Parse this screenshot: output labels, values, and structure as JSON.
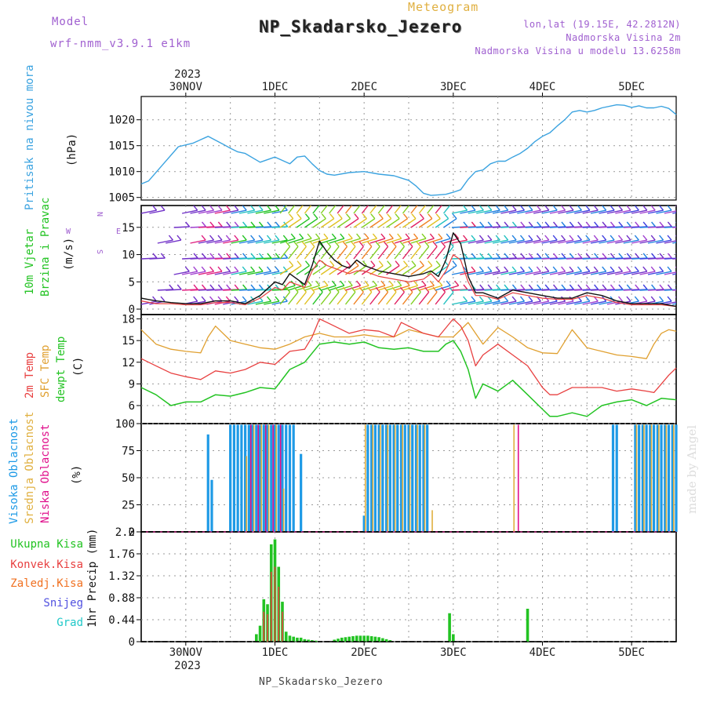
{
  "header": {
    "model_label": "Model",
    "model_name": "wrf-nmm_v3.9.1  e1km",
    "meteogram_label": "Meteogram",
    "station_title": "NP_Skadarsko_Jezero",
    "lonlat": "lon,lat (19.15E, 42.2812N)",
    "elevation": "Nadmorska Visina 2m",
    "model_elevation": "Nadmorska Visina u modelu 13.6258m",
    "bottom_name": "NP_Skadarsko_Jezero",
    "credit": "made by Angel"
  },
  "time_axis": {
    "year": "2023",
    "labels": [
      "30NOV",
      "1DEC",
      "2DEC",
      "3DEC",
      "4DEC",
      "5DEC"
    ],
    "label_hours": [
      0,
      24,
      48,
      72,
      96,
      120
    ],
    "range_hours": [
      -12,
      132
    ]
  },
  "panel_labels": {
    "pressure": [
      "Pritisak na nivou mora",
      "(hPa)"
    ],
    "wind": [
      "10m Vjetar",
      "Brzina i Pravac",
      "(m/s)"
    ],
    "temp": [
      "2m Temp",
      "SFC Temp",
      "dewpt Temp",
      "(C)"
    ],
    "cloud": [
      "Visoka Oblacnost",
      "Srednja Oblacnost",
      "Niska Oblacnost",
      "(%)"
    ],
    "precip": [
      "Ukupna Kisa",
      "Konvek.Kisa",
      "Zaledj.Kisa",
      "Snijeg",
      "Grad",
      "1hr Precip (mm)"
    ]
  },
  "compass": {
    "n": "N",
    "s": "S",
    "e": "E",
    "w": "W"
  },
  "colors": {
    "pressure": "#3ba3e0",
    "temp2m": "#e84040",
    "sfc": "#e0a030",
    "dew": "#22c322",
    "high_cloud": "#1e9ae6",
    "mid_cloud": "#e0b040",
    "low_cloud": "#e0108c",
    "total_precip": "#22c322",
    "conv_precip": "#e84040",
    "frz_precip": "#f07020",
    "snow": "#5050e0",
    "hail": "#20c8c8"
  },
  "chart_data": [
    {
      "type": "line",
      "title": "Pritisak na nivou mora",
      "ylabel": "(hPa)",
      "ylim": [
        1004.5,
        1024.5
      ],
      "yticks": [
        1005,
        1010,
        1015,
        1020
      ],
      "grid": true,
      "series": [
        {
          "name": "Pritisak na nivou mora",
          "x": [
            -12,
            -10,
            -6,
            -2,
            2,
            6,
            10,
            12,
            14,
            16,
            20,
            24,
            28,
            30,
            32,
            34,
            36,
            38,
            40,
            44,
            48,
            52,
            56,
            60,
            62,
            64,
            66,
            68,
            70,
            72,
            74,
            76,
            78,
            80,
            82,
            84,
            86,
            88,
            90,
            92,
            94,
            96,
            98,
            100,
            102,
            104,
            106,
            108,
            110,
            112,
            116,
            118,
            120,
            122,
            124,
            126,
            128,
            130,
            132
          ],
          "y": [
            1007.6,
            1008.2,
            1011.5,
            1014.8,
            1015.5,
            1016.8,
            1015.3,
            1014.5,
            1013.8,
            1013.5,
            1011.8,
            1012.8,
            1011.5,
            1012.8,
            1013.0,
            1011.5,
            1010.2,
            1009.5,
            1009.3,
            1009.8,
            1010.0,
            1009.5,
            1009.2,
            1008.3,
            1007.2,
            1005.8,
            1005.4,
            1005.5,
            1005.6,
            1006.0,
            1006.5,
            1008.5,
            1010.0,
            1010.3,
            1011.5,
            1012.0,
            1012.0,
            1012.8,
            1013.5,
            1014.5,
            1015.8,
            1016.8,
            1017.5,
            1018.8,
            1020.0,
            1021.5,
            1021.8,
            1021.5,
            1021.8,
            1022.3,
            1022.9,
            1022.8,
            1022.4,
            1022.7,
            1022.3,
            1022.3,
            1022.6,
            1022.2,
            1021.0
          ]
        }
      ]
    },
    {
      "type": "line",
      "title": "10m Vjetar Brzina i Pravac",
      "ylabel": "(m/s)",
      "ylim": [
        -1,
        19
      ],
      "yticks": [
        0,
        5,
        10,
        15
      ],
      "grid": true,
      "series": [
        {
          "name": "Brzina",
          "x": [
            -12,
            -8,
            -4,
            0,
            4,
            8,
            12,
            16,
            20,
            24,
            26,
            28,
            30,
            32,
            34,
            36,
            38,
            40,
            42,
            44,
            46,
            48,
            52,
            56,
            60,
            64,
            66,
            68,
            70,
            72,
            74,
            76,
            78,
            80,
            84,
            88,
            92,
            96,
            100,
            104,
            108,
            112,
            116,
            120,
            124,
            128,
            132
          ],
          "y": [
            2.0,
            1.5,
            1.2,
            1.0,
            1.0,
            1.5,
            1.5,
            1.0,
            2.5,
            5.0,
            4.5,
            6.5,
            5.5,
            4.5,
            8.0,
            12.5,
            10.5,
            9.0,
            8.0,
            7.5,
            9.0,
            8.0,
            7.0,
            6.5,
            6.0,
            6.5,
            7.0,
            6.0,
            9.0,
            14.0,
            12.0,
            6.0,
            3.0,
            3.0,
            2.0,
            3.5,
            3.0,
            2.5,
            2.0,
            2.0,
            3.0,
            2.5,
            1.5,
            1.0,
            1.0,
            1.0,
            0.5
          ]
        },
        {
          "name": "",
          "x": [
            -12,
            -8,
            -4,
            0,
            4,
            8,
            12,
            16,
            20,
            24,
            26,
            28,
            30,
            32,
            34,
            36,
            38,
            40,
            42,
            44,
            46,
            48,
            52,
            56,
            60,
            64,
            66,
            68,
            70,
            72,
            74,
            76,
            78,
            80,
            84,
            88,
            92,
            96,
            100,
            104,
            108,
            112,
            116,
            120,
            124,
            128,
            132
          ],
          "y": [
            1.5,
            1.0,
            1.0,
            0.8,
            0.8,
            1.2,
            1.2,
            0.8,
            2.0,
            4.0,
            3.5,
            5.0,
            4.5,
            4.0,
            7.0,
            9.0,
            8.0,
            7.5,
            7.0,
            6.5,
            7.0,
            7.0,
            6.0,
            5.5,
            5.0,
            5.5,
            6.5,
            5.0,
            7.0,
            10.0,
            9.0,
            5.0,
            2.5,
            2.5,
            1.8,
            3.0,
            2.5,
            2.0,
            1.8,
            1.8,
            2.5,
            2.0,
            1.2,
            0.8,
            0.8,
            0.8,
            0.5
          ]
        }
      ]
    },
    {
      "type": "line",
      "title": "Temp",
      "ylabel": "(C)",
      "ylim": [
        3.5,
        18.6
      ],
      "yticks": [
        6,
        9,
        12,
        15,
        18
      ],
      "grid": true,
      "series": [
        {
          "name": "2m Temp",
          "x": [
            -12,
            -8,
            -4,
            0,
            4,
            8,
            12,
            16,
            20,
            24,
            28,
            32,
            34,
            36,
            38,
            40,
            44,
            48,
            52,
            56,
            58,
            60,
            64,
            68,
            72,
            74,
            76,
            78,
            80,
            84,
            88,
            92,
            96,
            98,
            100,
            104,
            108,
            112,
            116,
            120,
            124,
            126,
            128,
            130,
            132
          ],
          "y": [
            12.5,
            11.5,
            10.5,
            10.0,
            9.6,
            10.8,
            10.5,
            11.0,
            12.0,
            11.7,
            13.5,
            13.8,
            15.5,
            18.0,
            17.5,
            17.0,
            16.0,
            16.5,
            16.3,
            15.5,
            17.5,
            17.0,
            16.0,
            15.5,
            18.0,
            17.0,
            15.0,
            11.5,
            13.0,
            14.5,
            13.0,
            11.5,
            8.5,
            7.5,
            7.5,
            8.5,
            8.5,
            8.5,
            8.0,
            8.3,
            8.0,
            7.8,
            9.0,
            10.2,
            11.2
          ]
        },
        {
          "name": "SFC Temp",
          "x": [
            -12,
            -8,
            -4,
            0,
            4,
            6,
            8,
            12,
            16,
            20,
            24,
            28,
            32,
            36,
            40,
            44,
            48,
            52,
            56,
            60,
            64,
            68,
            72,
            76,
            80,
            84,
            88,
            92,
            96,
            100,
            104,
            108,
            112,
            116,
            120,
            124,
            126,
            128,
            130,
            132
          ],
          "y": [
            16.5,
            14.5,
            13.8,
            13.5,
            13.3,
            15.5,
            17.0,
            15.0,
            14.5,
            14.0,
            13.8,
            14.5,
            15.5,
            16.0,
            15.5,
            15.5,
            15.8,
            15.5,
            15.5,
            16.5,
            16.0,
            15.5,
            15.5,
            17.5,
            14.5,
            16.8,
            15.5,
            14.0,
            13.3,
            13.2,
            16.5,
            14.0,
            13.5,
            13.0,
            12.8,
            12.5,
            14.5,
            16.0,
            16.5,
            16.3
          ]
        },
        {
          "name": "dewpt Temp",
          "x": [
            -12,
            -8,
            -4,
            0,
            4,
            8,
            12,
            16,
            20,
            24,
            28,
            32,
            36,
            40,
            44,
            48,
            52,
            56,
            60,
            64,
            68,
            70,
            72,
            74,
            76,
            78,
            80,
            84,
            88,
            92,
            96,
            98,
            100,
            104,
            108,
            112,
            116,
            120,
            124,
            128,
            132
          ],
          "y": [
            8.5,
            7.5,
            6.0,
            6.5,
            6.5,
            7.5,
            7.3,
            7.8,
            8.5,
            8.3,
            11.0,
            12.0,
            14.5,
            14.8,
            14.5,
            14.8,
            14.0,
            13.8,
            14.0,
            13.5,
            13.5,
            14.5,
            15.0,
            13.5,
            11.0,
            7.0,
            9.0,
            8.0,
            9.5,
            7.5,
            5.5,
            4.5,
            4.5,
            5.0,
            4.5,
            6.0,
            6.5,
            6.8,
            6.0,
            7.0,
            6.8
          ]
        }
      ]
    },
    {
      "type": "bar",
      "title": "Oblacnost",
      "ylabel": "(%)",
      "ylim": [
        0,
        100
      ],
      "yticks": [
        0,
        25,
        50,
        75,
        100
      ],
      "grid": true,
      "series": [
        {
          "name": "Visoka Oblacnost",
          "x": [
            6,
            7,
            12,
            13,
            14,
            15,
            16,
            17,
            18,
            19,
            20,
            21,
            22,
            23,
            24,
            25,
            26,
            27,
            28,
            29,
            31,
            48,
            49,
            50,
            51,
            52,
            53,
            54,
            55,
            56,
            57,
            58,
            59,
            60,
            61,
            62,
            63,
            64,
            65,
            115,
            116,
            121,
            122,
            123,
            124,
            125,
            126,
            127,
            128,
            129,
            130,
            131,
            132
          ],
          "y": [
            90,
            48,
            99,
            99,
            99,
            99,
            99,
            99,
            99,
            99,
            99,
            99,
            99,
            99,
            99,
            99,
            99,
            99,
            99,
            99,
            72,
            15,
            99,
            99,
            99,
            99,
            99,
            99,
            99,
            99,
            99,
            99,
            99,
            99,
            99,
            99,
            99,
            99,
            99,
            99,
            99,
            99,
            99,
            99,
            99,
            99,
            99,
            99,
            99,
            99,
            99,
            99,
            99
          ]
        },
        {
          "name": "Srednja Oblacnost",
          "x": [
            16,
            18,
            20,
            22,
            24,
            26,
            48,
            50,
            52,
            54,
            56,
            58,
            60,
            62,
            64,
            66,
            88,
            121,
            123,
            125,
            127,
            129,
            131
          ],
          "y": [
            70,
            99,
            99,
            99,
            99,
            40,
            99,
            99,
            99,
            99,
            99,
            99,
            99,
            99,
            99,
            20,
            99,
            99,
            99,
            99,
            99,
            99,
            99
          ]
        },
        {
          "name": "Niska Oblacnost",
          "x": [
            17,
            19,
            21,
            23,
            25,
            89
          ],
          "y": [
            99,
            99,
            99,
            99,
            99,
            99
          ]
        }
      ]
    },
    {
      "type": "bar",
      "title": "1hr Precip",
      "ylabel": "1hr Precip (mm)",
      "ylim": [
        0,
        2.2
      ],
      "yticks": [
        0,
        0.44,
        0.88,
        1.32,
        1.76,
        2.2
      ],
      "grid": true,
      "series": [
        {
          "name": "Ukupna Kisa",
          "x": [
            19,
            20,
            21,
            22,
            23,
            24,
            25,
            26,
            27,
            28,
            29,
            30,
            31,
            32,
            33,
            34,
            35,
            40,
            41,
            42,
            43,
            44,
            45,
            46,
            47,
            48,
            49,
            50,
            51,
            52,
            53,
            54,
            55,
            71,
            72,
            92
          ],
          "y": [
            0.15,
            0.32,
            0.85,
            0.75,
            1.95,
            2.05,
            1.5,
            0.8,
            0.2,
            0.12,
            0.1,
            0.08,
            0.08,
            0.05,
            0.04,
            0.03,
            0.02,
            0.04,
            0.06,
            0.08,
            0.09,
            0.1,
            0.11,
            0.12,
            0.12,
            0.12,
            0.12,
            0.11,
            0.1,
            0.09,
            0.07,
            0.05,
            0.03,
            0.57,
            0.15,
            0.66
          ]
        },
        {
          "name": "Konvek.Kisa",
          "x": [
            21,
            22,
            23,
            24,
            25,
            26
          ],
          "y": [
            0.6,
            0.55,
            1.4,
            1.5,
            1.1,
            0.6
          ]
        }
      ]
    }
  ]
}
